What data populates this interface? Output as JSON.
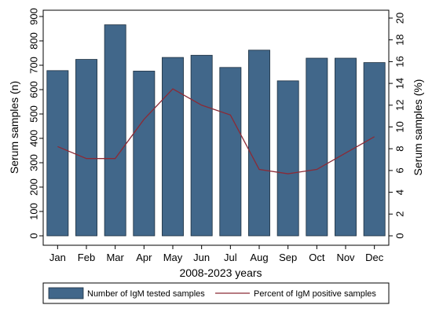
{
  "chart_data": {
    "type": "bar",
    "categories": [
      "Jan",
      "Feb",
      "Mar",
      "Apr",
      "May",
      "Jun",
      "Jul",
      "Aug",
      "Sep",
      "Oct",
      "Nov",
      "Dec"
    ],
    "xlabel": "2008-2023 years",
    "ylabel_left": "Serum samples (n)",
    "ylabel_right": "Serum samples (%)",
    "ylim_left": [
      0,
      900
    ],
    "ylim_right": [
      0,
      20
    ],
    "yticks_left": [
      0,
      100,
      200,
      300,
      400,
      500,
      600,
      700,
      800,
      900
    ],
    "yticks_right": [
      0,
      2,
      4,
      6,
      8,
      10,
      12,
      14,
      16,
      18,
      20
    ],
    "grid": false,
    "legend_position": "bottom",
    "series": [
      {
        "name": "Number of IgM tested samples",
        "type": "bar",
        "axis": "left",
        "color": "#41678a",
        "values": [
          678,
          724,
          866,
          676,
          732,
          741,
          691,
          762,
          636,
          729,
          729,
          711
        ]
      },
      {
        "name": "Percent of IgM positive samples",
        "type": "line",
        "axis": "right",
        "color": "#8b2a36",
        "values": [
          8.2,
          7.1,
          7.1,
          10.7,
          13.5,
          12.0,
          11.1,
          6.1,
          5.7,
          6.1,
          7.6,
          9.1
        ]
      }
    ]
  }
}
